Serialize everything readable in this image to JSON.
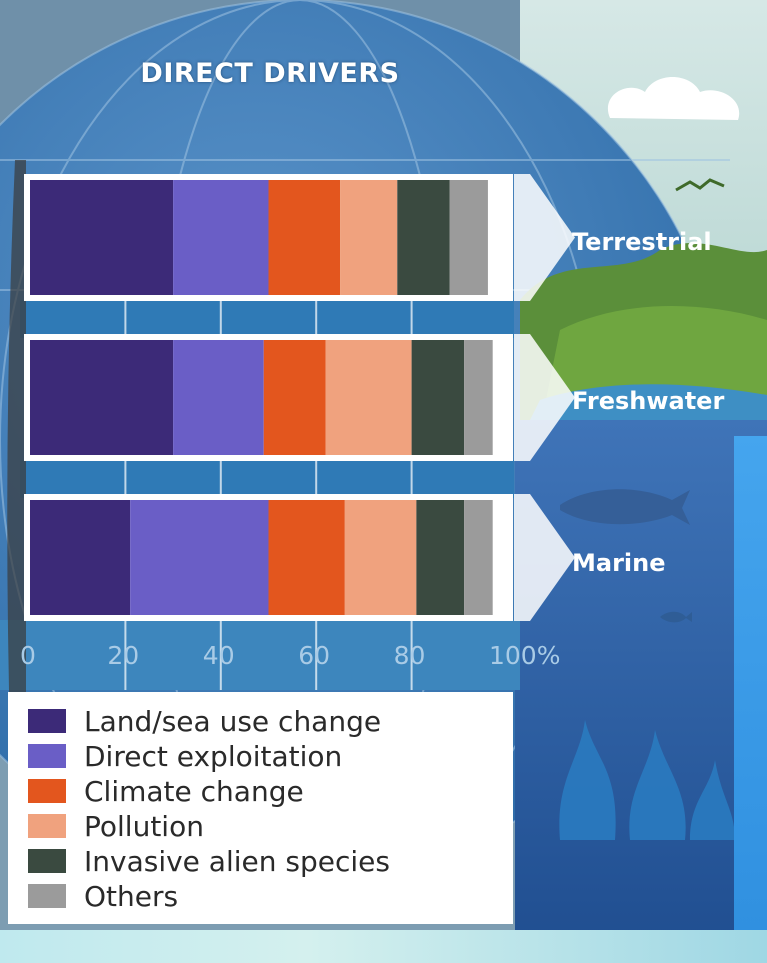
{
  "chart_data": {
    "type": "bar",
    "orientation": "horizontal",
    "stacked": true,
    "title": "DIRECT DRIVERS",
    "categories": [
      "Terrestrial",
      "Freshwater",
      "Marine"
    ],
    "series": [
      {
        "name": "Land/sea use change",
        "color": "#3c2a78",
        "values": [
          30,
          30,
          21
        ]
      },
      {
        "name": "Direct exploitation",
        "color": "#6a5ec6",
        "values": [
          20,
          19,
          29
        ]
      },
      {
        "name": "Climate change",
        "color": "#e3561e",
        "values": [
          15,
          13,
          16
        ]
      },
      {
        "name": "Pollution",
        "color": "#f0a27e",
        "values": [
          12,
          18,
          15
        ]
      },
      {
        "name": "Invasive alien species",
        "color": "#3a4a40",
        "values": [
          11,
          11,
          10
        ]
      },
      {
        "name": "Others",
        "color": "#9b9b9b",
        "values": [
          8,
          6,
          6
        ]
      }
    ],
    "xticks": [
      "0",
      "20",
      "40",
      "60",
      "80",
      "100%"
    ],
    "xlim": [
      0,
      100
    ],
    "legend_position": "bottom-left",
    "grid": true
  }
}
